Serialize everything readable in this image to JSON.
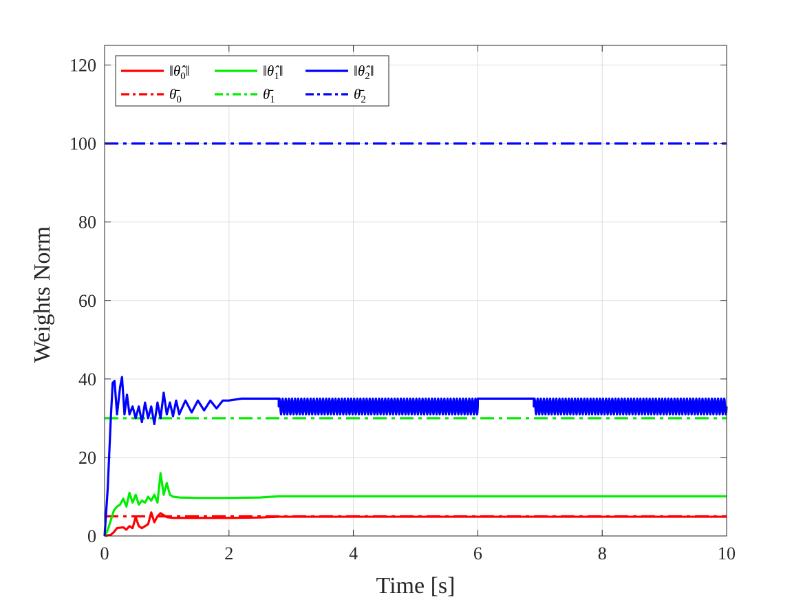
{
  "chart_data": {
    "type": "line",
    "xlabel": "Time [s]",
    "ylabel": "Weights Norm",
    "xlim": [
      0,
      10
    ],
    "ylim": [
      0,
      125
    ],
    "xticks": [
      0,
      2,
      4,
      6,
      8,
      10
    ],
    "yticks": [
      0,
      20,
      40,
      60,
      80,
      100,
      120
    ],
    "xtick_labels": [
      "0",
      "2",
      "4",
      "6",
      "8",
      "10"
    ],
    "ytick_labels": [
      "0",
      "20",
      "40",
      "60",
      "80",
      "100",
      "120"
    ],
    "grid": true,
    "legend_position": "top-left",
    "series": [
      {
        "name": "‖θ̂0‖",
        "color": "#ff0000",
        "style": "solid",
        "x": [
          0,
          0.1,
          0.15,
          0.2,
          0.3,
          0.35,
          0.4,
          0.45,
          0.5,
          0.55,
          0.6,
          0.7,
          0.75,
          0.8,
          0.85,
          0.9,
          1.0,
          1.1,
          1.5,
          2.0,
          2.5,
          2.8,
          4.0,
          6.0,
          8.0,
          10.0
        ],
        "y": [
          0,
          0.3,
          1.0,
          2.0,
          2.2,
          1.6,
          2.5,
          2.0,
          4.8,
          2.5,
          2.0,
          3.0,
          6.0,
          3.5,
          5.0,
          5.8,
          4.8,
          4.6,
          4.6,
          4.6,
          4.7,
          4.9,
          4.9,
          4.9,
          4.9,
          4.9
        ]
      },
      {
        "name": "‖θ̂1‖",
        "color": "#00ee00",
        "style": "solid",
        "x": [
          0,
          0.05,
          0.1,
          0.15,
          0.2,
          0.25,
          0.3,
          0.35,
          0.4,
          0.45,
          0.5,
          0.55,
          0.6,
          0.65,
          0.7,
          0.75,
          0.8,
          0.85,
          0.9,
          0.95,
          1.0,
          1.05,
          1.1,
          1.2,
          1.5,
          2.0,
          2.5,
          2.8,
          4.0,
          6.0,
          8.0,
          10.0
        ],
        "y": [
          0,
          1.5,
          4.0,
          6.5,
          7.5,
          8.0,
          9.5,
          7.5,
          11.0,
          8.5,
          10.5,
          8.0,
          9.0,
          8.5,
          10.0,
          9.0,
          10.5,
          8.5,
          16.0,
          10.5,
          13.5,
          10.5,
          10.0,
          9.8,
          9.7,
          9.7,
          9.8,
          10.1,
          10.1,
          10.1,
          10.1,
          10.1
        ]
      },
      {
        "name": "‖θ̂2‖",
        "color": "#0000ff",
        "style": "solid",
        "x": [
          0,
          0.05,
          0.1,
          0.13,
          0.16,
          0.2,
          0.25,
          0.28,
          0.32,
          0.36,
          0.4,
          0.45,
          0.5,
          0.55,
          0.6,
          0.65,
          0.7,
          0.75,
          0.8,
          0.85,
          0.9,
          0.95,
          1.0,
          1.05,
          1.1,
          1.15,
          1.2,
          1.3,
          1.4,
          1.5,
          1.6,
          1.7,
          1.8,
          1.9,
          2.0,
          2.2,
          2.5,
          2.8
        ],
        "y": [
          0,
          12,
          30,
          39,
          39.5,
          31,
          38,
          40.5,
          31,
          36,
          31,
          33,
          30,
          33,
          29,
          34,
          30,
          33,
          28.5,
          34,
          30,
          36.5,
          31,
          34,
          30.5,
          34.5,
          31,
          34.5,
          31.5,
          34.5,
          32,
          34.5,
          32.5,
          34.5,
          34.5,
          35,
          35,
          35
        ],
        "oscillating_segments": [
          {
            "x_start": 2.8,
            "x_end": 6.0,
            "min": 31,
            "max": 35
          },
          {
            "x_start": 6.9,
            "x_end": 10.0,
            "min": 31,
            "max": 35
          }
        ],
        "steady_segments": [
          {
            "x_start": 6.0,
            "x_end": 6.9,
            "value": 35
          }
        ]
      },
      {
        "name": "θ̄0",
        "color": "#ff0000",
        "style": "dashdot",
        "x": [
          0,
          10
        ],
        "y": [
          5,
          5
        ]
      },
      {
        "name": "θ̄1",
        "color": "#00ee00",
        "style": "dashdot",
        "x": [
          0,
          10
        ],
        "y": [
          30,
          30
        ]
      },
      {
        "name": "θ̄2",
        "color": "#0000ff",
        "style": "dashdot",
        "x": [
          0,
          10
        ],
        "y": [
          100,
          100
        ]
      }
    ]
  },
  "legend": {
    "items": [
      {
        "base": "‖θ̂",
        "sub": "0",
        "tail": "‖",
        "color": "#ff0000",
        "style": "solid"
      },
      {
        "base": "‖θ̂",
        "sub": "1",
        "tail": "‖",
        "color": "#00ee00",
        "style": "solid"
      },
      {
        "base": "‖θ̂",
        "sub": "2",
        "tail": "‖",
        "color": "#0000ff",
        "style": "solid"
      },
      {
        "base": "θ̄",
        "sub": "0",
        "tail": "",
        "color": "#ff0000",
        "style": "dashdot"
      },
      {
        "base": "θ̄",
        "sub": "1",
        "tail": "",
        "color": "#00ee00",
        "style": "dashdot"
      },
      {
        "base": "θ̄",
        "sub": "2",
        "tail": "",
        "color": "#0000ff",
        "style": "dashdot"
      }
    ]
  }
}
